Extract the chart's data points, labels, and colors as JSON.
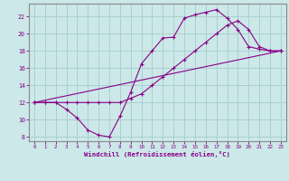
{
  "xlabel": "Windchill (Refroidissement éolien,°C)",
  "xlim": [
    -0.5,
    23.5
  ],
  "ylim": [
    7.5,
    23.5
  ],
  "bg_color": "#cce8e8",
  "line_color": "#880088",
  "grid_color": "#aad0d0",
  "spine_color": "#888888",
  "line1_x": [
    0,
    1,
    2,
    3,
    4,
    5,
    6,
    7,
    8,
    9,
    10,
    11,
    12,
    13,
    14,
    15,
    16,
    17,
    18,
    19,
    20,
    21,
    22,
    23
  ],
  "line1_y": [
    12,
    12,
    12,
    11.2,
    10.2,
    8.8,
    8.2,
    8.0,
    10.4,
    13.2,
    16.5,
    18.0,
    19.5,
    19.6,
    21.8,
    22.2,
    22.5,
    22.8,
    21.8,
    20.5,
    18.5,
    18.2,
    18.0,
    18.0
  ],
  "line2_x": [
    0,
    1,
    2,
    3,
    4,
    5,
    6,
    7,
    8,
    9,
    10,
    11,
    12,
    13,
    14,
    15,
    16,
    17,
    18,
    19,
    20,
    21,
    22,
    23
  ],
  "line2_y": [
    12,
    12,
    12,
    12,
    12,
    12,
    12,
    12,
    12,
    12.5,
    13.0,
    14.0,
    15.0,
    16.0,
    17.0,
    18.0,
    19.0,
    20.0,
    21.0,
    21.5,
    20.5,
    18.5,
    18.0,
    18.0
  ],
  "line3_x": [
    0,
    23
  ],
  "line3_y": [
    12,
    18
  ],
  "xticks": [
    0,
    1,
    2,
    3,
    4,
    5,
    6,
    7,
    8,
    9,
    10,
    11,
    12,
    13,
    14,
    15,
    16,
    17,
    18,
    19,
    20,
    21,
    22,
    23
  ],
  "yticks": [
    8,
    10,
    12,
    14,
    16,
    18,
    20,
    22
  ]
}
